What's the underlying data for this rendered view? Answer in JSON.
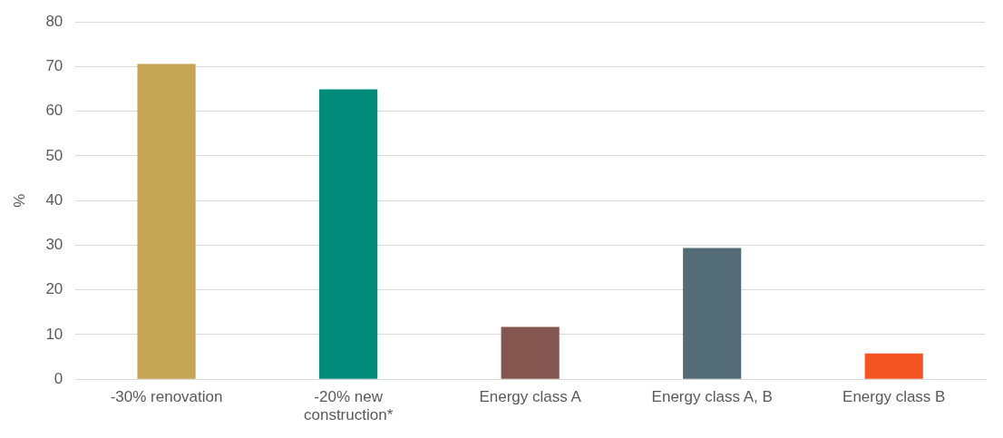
{
  "chart_data": {
    "type": "bar",
    "ylabel": "%",
    "categories": [
      "-30% renovation",
      "-20% new construction*",
      "Energy class A",
      "Energy class A, B",
      "Energy class B"
    ],
    "values": [
      70.6,
      64.9,
      11.7,
      29.4,
      5.8
    ],
    "colors": [
      "#c4a553",
      "#008b7a",
      "#83564f",
      "#546c78",
      "#f55522"
    ],
    "ylim": [
      0,
      80
    ],
    "yticks": [
      0,
      10,
      20,
      30,
      40,
      50,
      60,
      70,
      80
    ],
    "grid": "y",
    "legend": false
  }
}
